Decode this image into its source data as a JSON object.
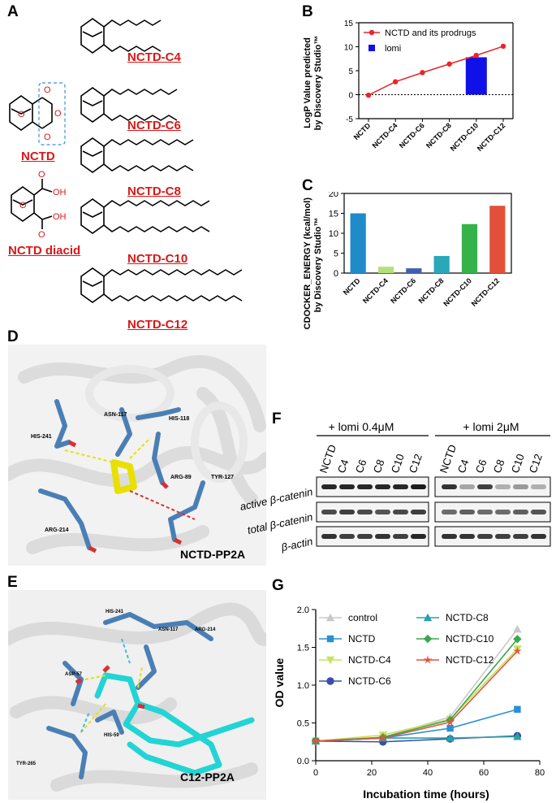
{
  "panels": {
    "A": "A",
    "B": "B",
    "C": "C",
    "D": "D",
    "E": "E",
    "F": "F",
    "G": "G"
  },
  "panel_a": {
    "molecules": [
      "NCTD",
      "NCTD diacid",
      "NCTD-C4",
      "NCTD-C6",
      "NCTD-C8",
      "NCTD-C10",
      "NCTD-C12"
    ],
    "atoms": {
      "O": "O",
      "OH": "OH"
    },
    "label_color": "#d81818"
  },
  "panel_d": {
    "label": "NCTD-PP2A",
    "residues": [
      "ASN-117",
      "HIS-118",
      "HIS-241",
      "ARG-89",
      "TYR-127",
      "ARG-214"
    ]
  },
  "panel_e": {
    "label": "C12-PP2A",
    "residues": [
      "HIS-241",
      "ASN-117",
      "ARG-214",
      "ASP-57",
      "HIS-59",
      "TYR-265"
    ]
  },
  "panel_f": {
    "condition_1": "+ lomi 0.4μM",
    "condition_2": "+ lomi 2μM",
    "lanes": [
      "NCTD",
      "C4",
      "C6",
      "C8",
      "C10",
      "C12"
    ],
    "rows": [
      "active β-catenin",
      "total β-catenin",
      "β-actin"
    ]
  },
  "chart_data": [
    {
      "id": "B",
      "type": "line",
      "ylabel_line1": "LogP Value predicted",
      "ylabel_line2": "by Discovery Studio™",
      "categories": [
        "NCTD",
        "NCTD-C4",
        "NCTD-C6",
        "NCTD-C8",
        "NCTD-C10",
        "NCTD-C12"
      ],
      "ylim": [
        -5,
        15
      ],
      "yticks": [
        -5,
        0,
        5,
        10,
        15
      ],
      "series": [
        {
          "name": "NCTD and its prodrugs",
          "type": "line",
          "color": "#e8252a",
          "values": [
            -0.1,
            2.7,
            4.6,
            6.4,
            8.2,
            10.1
          ]
        },
        {
          "name": "lomi",
          "type": "bar",
          "color": "#1010e8",
          "category": "NCTD-C10",
          "value": 7.8
        }
      ],
      "legend": "top-left"
    },
    {
      "id": "C",
      "type": "bar",
      "ylabel_line1": "-CDOCKER_ENERGY (kcal/mol)",
      "ylabel_line2": "by Discovery Studio™",
      "categories": [
        "NCTD",
        "NCTD-C4",
        "NCTD-C6",
        "NCTD-C8",
        "NCTD-C10",
        "NCTD-C12"
      ],
      "values": [
        15.0,
        1.6,
        1.2,
        4.3,
        12.3,
        16.9
      ],
      "colors": [
        "#1f8bc9",
        "#b4e07a",
        "#3f5fb0",
        "#2aa7b8",
        "#36b24a",
        "#e2503a"
      ],
      "ylim": [
        0,
        20
      ],
      "yticks": [
        0,
        5,
        10,
        15,
        20
      ]
    },
    {
      "id": "G",
      "type": "line",
      "xlabel": "Incubation time (hours)",
      "ylabel": "OD value",
      "x": [
        0,
        24,
        48,
        72
      ],
      "xlim": [
        0,
        80
      ],
      "xticks": [
        0,
        20,
        40,
        60,
        80
      ],
      "ylim": [
        0,
        2.0
      ],
      "yticks": [
        0.0,
        0.5,
        1.0,
        1.5,
        2.0
      ],
      "series": [
        {
          "name": "control",
          "color": "#c8c8c8",
          "marker": "triangle",
          "values": [
            0.26,
            0.31,
            0.58,
            1.74
          ]
        },
        {
          "name": "NCTD",
          "color": "#2b8fd1",
          "marker": "square",
          "values": [
            0.26,
            0.3,
            0.43,
            0.68
          ]
        },
        {
          "name": "NCTD-C4",
          "color": "#c6e35b",
          "marker": "tri-down",
          "values": [
            0.26,
            0.34,
            0.55,
            1.48
          ]
        },
        {
          "name": "NCTD-C6",
          "color": "#3a4fa8",
          "marker": "circle",
          "values": [
            0.26,
            0.25,
            0.29,
            0.33
          ]
        },
        {
          "name": "NCTD-C8",
          "color": "#2aa0a8",
          "marker": "triangle",
          "values": [
            0.26,
            0.3,
            0.3,
            0.32
          ]
        },
        {
          "name": "NCTD-C10",
          "color": "#3aa84a",
          "marker": "diamond",
          "values": [
            0.26,
            0.31,
            0.54,
            1.61
          ]
        },
        {
          "name": "NCTD-C12",
          "color": "#e0553c",
          "marker": "star",
          "values": [
            0.26,
            0.3,
            0.51,
            1.45
          ]
        }
      ],
      "legend": "top-left"
    }
  ]
}
